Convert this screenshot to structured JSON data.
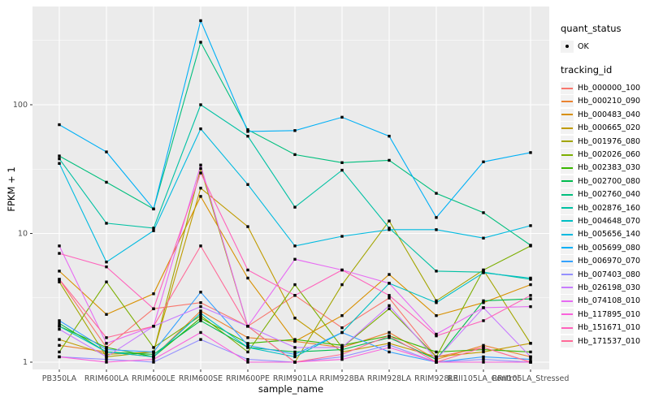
{
  "figure": {
    "panel_bg": "#EBEBEB",
    "grid_color": "#FFFFFF",
    "tick_label_color": "#4D4D4D",
    "point_color": "#000000"
  },
  "legend": {
    "quant_status": {
      "title": "quant_status",
      "items": [
        {
          "label": "OK",
          "marker": "black-point"
        }
      ]
    },
    "tracking_id_title": "tracking_id"
  },
  "chart_data": {
    "type": "line",
    "title": "",
    "xlabel": "sample_name",
    "ylabel": "FPKM + 1",
    "yscale": "log10",
    "ylim": [
      1,
      580
    ],
    "y_ticks": [
      1,
      10,
      100
    ],
    "y_minor_ticks": [
      3.162,
      31.62,
      316.2
    ],
    "grid": true,
    "legend_position": "right",
    "marker": "small black point (quant_status = OK) on every vertex",
    "categories": [
      "PB350LA",
      "RRIM600LA",
      "RRIM600LE",
      "RRIM600SE",
      "RRIM600PE",
      "RRIM901LA",
      "RRIM928BA",
      "RRIM928LA",
      "RRIM928LE",
      "RRII105LA_Control",
      "RRII105LA_Stressed"
    ],
    "series": [
      {
        "name": "Hb_000000_100",
        "color": "#F8766D",
        "values": [
          4.4,
          1.3,
          2.6,
          2.9,
          1.9,
          3.3,
          1.85,
          3.15,
          1.1,
          1.3,
          1.0
        ]
      },
      {
        "name": "Hb_000210_090",
        "color": "#EA8331",
        "values": [
          1.35,
          1.2,
          1.1,
          2.5,
          1.55,
          1.45,
          1.3,
          1.7,
          1.05,
          1.35,
          1.1
        ]
      },
      {
        "name": "Hb_000483_040",
        "color": "#D89000",
        "values": [
          5.1,
          2.35,
          3.4,
          19.4,
          4.5,
          1.45,
          2.3,
          4.8,
          2.3,
          2.9,
          4.0
        ]
      },
      {
        "name": "Hb_000665_020",
        "color": "#C09B00",
        "values": [
          1.5,
          1.15,
          1.2,
          22.5,
          11.3,
          2.2,
          1.2,
          1.4,
          1.1,
          1.2,
          1.4
        ]
      },
      {
        "name": "Hb_001976_080",
        "color": "#A3A500",
        "values": [
          4.2,
          1.1,
          1.2,
          32,
          1.9,
          1.0,
          4.0,
          12.5,
          3.0,
          5.2,
          1.4
        ]
      },
      {
        "name": "Hb_002026_060",
        "color": "#7CAE00",
        "values": [
          1.2,
          4.2,
          1.3,
          2.3,
          1.2,
          4.0,
          1.3,
          2.6,
          1.1,
          5.2,
          8.0
        ]
      },
      {
        "name": "Hb_002383_030",
        "color": "#39B600",
        "values": [
          1.9,
          1.3,
          1.1,
          2.2,
          1.4,
          1.5,
          1.35,
          1.6,
          1.2,
          1.25,
          1.2
        ]
      },
      {
        "name": "Hb_002700_080",
        "color": "#00BB4E",
        "values": [
          2.0,
          1.2,
          1.15,
          2.1,
          1.3,
          1.2,
          1.25,
          1.55,
          1.05,
          3.0,
          3.1
        ]
      },
      {
        "name": "Hb_002760_040",
        "color": "#00BF7D",
        "values": [
          40,
          25,
          15.5,
          306,
          64,
          41,
          35.5,
          37,
          20.5,
          14.5,
          8.1
        ]
      },
      {
        "name": "Hb_002876_160",
        "color": "#00C1A3",
        "values": [
          38,
          12,
          11,
          100,
          57,
          16,
          31,
          11,
          5.1,
          5.0,
          4.4
        ]
      },
      {
        "name": "Hb_004648_070",
        "color": "#00BFC4",
        "values": [
          1.9,
          1.2,
          1.1,
          2.4,
          1.3,
          1.1,
          1.7,
          4.1,
          2.9,
          4.95,
          4.5
        ]
      },
      {
        "name": "Hb_005656_140",
        "color": "#00BAE0",
        "values": [
          35,
          6.0,
          10.5,
          65,
          24,
          8.0,
          9.5,
          10.7,
          10.7,
          9.2,
          11.5
        ]
      },
      {
        "name": "Hb_005699_080",
        "color": "#00B0F6",
        "values": [
          70,
          43,
          15.5,
          450,
          62,
          63,
          80,
          57,
          13.3,
          36,
          42.5
        ]
      },
      {
        "name": "Hb_006970_070",
        "color": "#35A2FF",
        "values": [
          2.1,
          1.25,
          1.2,
          3.5,
          1.35,
          1.15,
          1.7,
          1.2,
          1.0,
          1.1,
          1.05
        ]
      },
      {
        "name": "Hb_007403_080",
        "color": "#9590FF",
        "values": [
          1.1,
          1.05,
          1.0,
          1.5,
          1.05,
          1.0,
          1.1,
          1.36,
          1.0,
          1.05,
          1.0
        ]
      },
      {
        "name": "Hb_026198_030",
        "color": "#C77CFF",
        "values": [
          1.8,
          1.1,
          1.9,
          2.7,
          1.9,
          1.3,
          1.3,
          2.75,
          1.05,
          2.65,
          1.1
        ]
      },
      {
        "name": "Hb_074108_010",
        "color": "#E76BF3",
        "values": [
          8.0,
          1.4,
          1.9,
          34,
          1.9,
          6.3,
          5.2,
          4.1,
          1.65,
          2.65,
          2.7
        ]
      },
      {
        "name": "Hb_117895_010",
        "color": "#FA62DB",
        "values": [
          1.1,
          1.0,
          1.05,
          1.7,
          1.0,
          1.0,
          1.05,
          1.3,
          1.0,
          1.0,
          1.0
        ]
      },
      {
        "name": "Hb_151671_010",
        "color": "#FF62BC",
        "values": [
          7.0,
          5.5,
          2.6,
          29.5,
          5.2,
          3.3,
          5.2,
          3.3,
          1.6,
          2.1,
          3.3
        ]
      },
      {
        "name": "Hb_171537_010",
        "color": "#FF6A98",
        "values": [
          4.4,
          1.55,
          1.9,
          8.0,
          1.9,
          1.0,
          1.15,
          1.6,
          1.0,
          1.3,
          1.0
        ]
      }
    ]
  }
}
